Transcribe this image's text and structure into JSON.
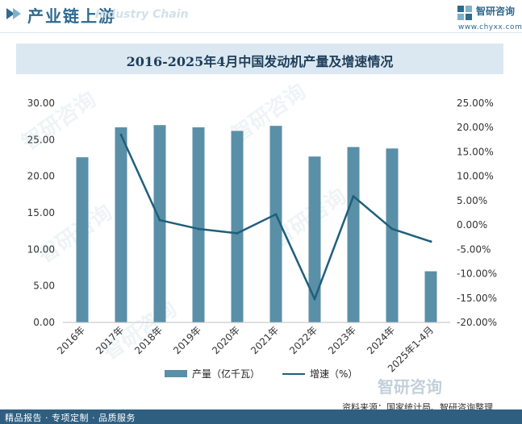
{
  "header": {
    "title": "产业链上游",
    "subtitle": "Industry Chain",
    "brand_name": "智研咨询",
    "brand_url": "www.chyxx.com"
  },
  "chart_data": {
    "type": "bar+line",
    "title": "2016-2025年4月中国发动机产量及增速情况",
    "categories": [
      "2016年",
      "2017年",
      "2018年",
      "2019年",
      "2020年",
      "2021年",
      "2022年",
      "2023年",
      "2024年",
      "2025年1-4月"
    ],
    "series": [
      {
        "name": "产量（亿千瓦）",
        "type": "bar",
        "axis": "left",
        "color": "#5a8fa8",
        "values": [
          22.6,
          26.7,
          27.0,
          26.7,
          26.2,
          26.9,
          22.7,
          24.0,
          23.8,
          7.0
        ]
      },
      {
        "name": "增速（%）",
        "type": "line",
        "axis": "right",
        "color": "#1f5f7a",
        "values": [
          null,
          18.5,
          1.0,
          -0.8,
          -1.7,
          2.2,
          -15.2,
          5.9,
          -0.8,
          -3.4
        ]
      }
    ],
    "y_left": {
      "min": 0,
      "max": 30,
      "step": 5,
      "ticks": [
        "30.00",
        "25.00",
        "20.00",
        "15.00",
        "10.00",
        "5.00",
        "0.00"
      ]
    },
    "y_right": {
      "min": -20,
      "max": 25,
      "step": 5,
      "ticks": [
        "25.00%",
        "20.00%",
        "15.00%",
        "10.00%",
        "5.00%",
        "0.00%",
        "-5.00%",
        "-10.00%",
        "-15.00%",
        "-20.00%"
      ]
    },
    "legend_position": "bottom-center",
    "grid": false
  },
  "legend": {
    "bar_label": "产量（亿千瓦）",
    "line_label": "增速（%）"
  },
  "source": "资料来源：国家统计局、智研咨询整理",
  "footer": "精品报告 · 专项定制 · 品质服务",
  "watermark": "智研咨询"
}
